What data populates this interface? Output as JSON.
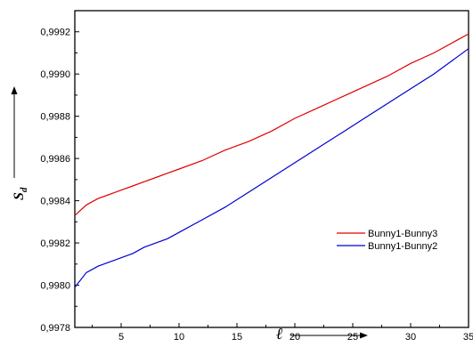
{
  "chart_data": {
    "type": "line",
    "xlabel": "ℓ",
    "ylabel": "S",
    "ylabel_sub": "d",
    "xlim": [
      1,
      35
    ],
    "ylim": [
      0.9978,
      0.9993
    ],
    "x_ticks": [
      5,
      10,
      15,
      20,
      25,
      30,
      35
    ],
    "x_tick_labels": [
      "5",
      "10",
      "15",
      "20",
      "25",
      "30",
      "35"
    ],
    "y_ticks": [
      0.9978,
      0.998,
      0.9982,
      0.9984,
      0.9986,
      0.9988,
      0.999,
      0.9992
    ],
    "y_tick_labels": [
      "0,9978",
      "0,9980",
      "0,9982",
      "0,9984",
      "0,9986",
      "0,9988",
      "0,9990",
      "0,9992"
    ],
    "legend_position": "lower-right",
    "grid": false,
    "series": [
      {
        "name": "Bunny1-Bunny3",
        "color": "#e00000",
        "x": [
          1,
          2,
          3,
          4,
          5,
          6,
          7,
          8,
          9,
          10,
          12,
          14,
          16,
          18,
          20,
          22,
          24,
          26,
          28,
          30,
          32,
          34,
          35
        ],
        "y": [
          0.99833,
          0.99838,
          0.99841,
          0.99843,
          0.99845,
          0.99847,
          0.99849,
          0.99851,
          0.99853,
          0.99855,
          0.99859,
          0.99864,
          0.99868,
          0.99873,
          0.99879,
          0.99884,
          0.99889,
          0.99894,
          0.99899,
          0.99905,
          0.9991,
          0.99916,
          0.99919
        ]
      },
      {
        "name": "Bunny1-Bunny2",
        "color": "#0000d0",
        "x": [
          1,
          2,
          3,
          4,
          5,
          6,
          7,
          8,
          9,
          10,
          12,
          14,
          16,
          18,
          20,
          22,
          24,
          26,
          28,
          30,
          32,
          34,
          35
        ],
        "y": [
          0.99799,
          0.99806,
          0.99809,
          0.99811,
          0.99813,
          0.99815,
          0.99818,
          0.9982,
          0.99822,
          0.99825,
          0.99831,
          0.99837,
          0.99844,
          0.99851,
          0.99858,
          0.99865,
          0.99872,
          0.99879,
          0.99886,
          0.99893,
          0.999,
          0.99908,
          0.99912
        ]
      }
    ]
  }
}
